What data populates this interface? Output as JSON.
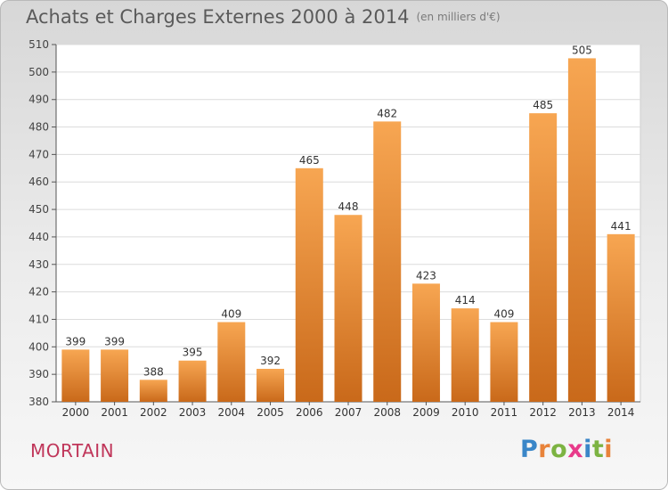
{
  "header": {
    "title": "Achats et Charges Externes 2000 à 2014",
    "unit": "(en milliers d'€)"
  },
  "footer": {
    "commune": "MORTAIN",
    "logo_text": "Proxiti",
    "logo_colors": [
      "#3a86c8",
      "#e8833a",
      "#7cb342",
      "#e83a8a",
      "#3a86c8",
      "#7cb342",
      "#e8833a"
    ]
  },
  "chart_data": {
    "type": "bar",
    "categories": [
      "2000",
      "2001",
      "2002",
      "2003",
      "2004",
      "2005",
      "2006",
      "2007",
      "2008",
      "2009",
      "2010",
      "2011",
      "2012",
      "2013",
      "2014"
    ],
    "values": [
      399,
      399,
      388,
      395,
      409,
      392,
      465,
      448,
      482,
      423,
      414,
      409,
      485,
      505,
      441
    ],
    "title": "Achats et Charges Externes 2000 à 2014",
    "xlabel": "",
    "ylabel": "",
    "ylim": [
      380,
      510
    ],
    "yticks": [
      380,
      390,
      400,
      410,
      420,
      430,
      440,
      450,
      460,
      470,
      480,
      490,
      500,
      510
    ],
    "grid": true,
    "bar_color": "#f0943a"
  }
}
